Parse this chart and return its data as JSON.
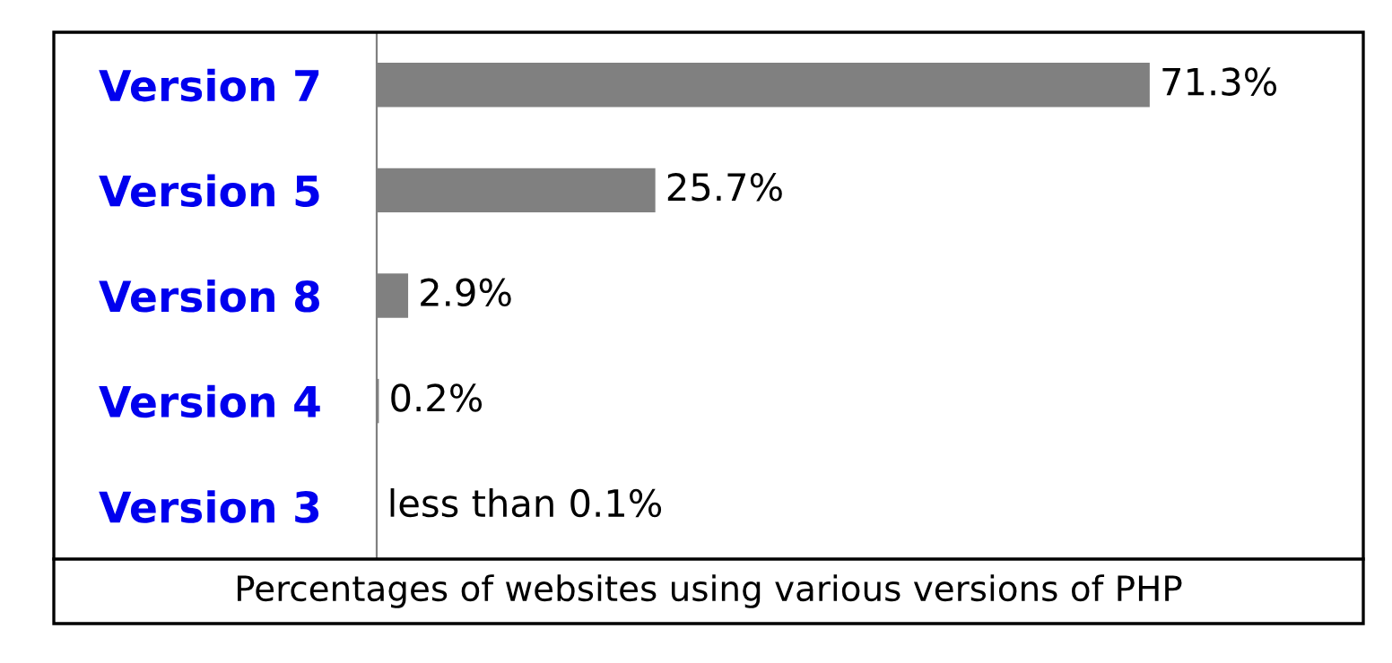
{
  "chart_data": {
    "type": "bar",
    "orientation": "horizontal",
    "title": "Percentages of websites using various versions of PHP",
    "categories": [
      "Version 7",
      "Version 5",
      "Version 8",
      "Version 4",
      "Version 3"
    ],
    "values": [
      71.3,
      25.7,
      2.9,
      0.2,
      0.05
    ],
    "value_labels": [
      "71.3%",
      "25.7%",
      "2.9%",
      "0.2%",
      "less than 0.1%"
    ],
    "color": "#808080",
    "xlim": [
      0,
      91
    ],
    "tick_labels": "y",
    "grid": false,
    "legend": false
  }
}
